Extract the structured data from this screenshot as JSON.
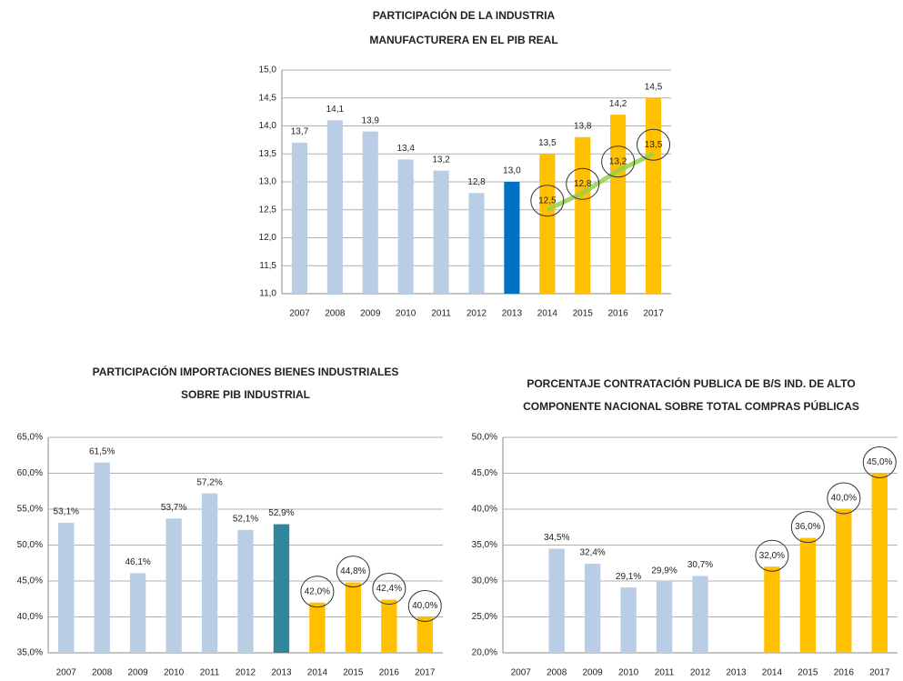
{
  "chart_data": [
    {
      "type": "bar",
      "title": [
        "PARTICIPACIÓN DE LA INDUSTRIA",
        "MANUFACTURERA EN EL PIB REAL"
      ],
      "categories": [
        "2007",
        "2008",
        "2009",
        "2010",
        "2011",
        "2012",
        "2013",
        "2014",
        "2015",
        "2016",
        "2017"
      ],
      "series": [
        {
          "type": "bar",
          "values": [
            13.7,
            14.1,
            13.9,
            13.4,
            13.2,
            12.8,
            13.0,
            13.5,
            13.8,
            14.2,
            14.5
          ],
          "value_labels": [
            "13,7",
            "14,1",
            "13,9",
            "13,4",
            "13,2",
            "12,8",
            "13,0",
            "13,5",
            "13,8",
            "14,2",
            "14,5"
          ],
          "colors": [
            "#b9cde5",
            "#b9cde5",
            "#b9cde5",
            "#b9cde5",
            "#b9cde5",
            "#b9cde5",
            "#0070c0",
            "#ffc000",
            "#ffc000",
            "#ffc000",
            "#ffc000"
          ]
        },
        {
          "type": "line",
          "color": "#92d050",
          "values": [
            null,
            null,
            null,
            null,
            null,
            null,
            null,
            12.5,
            12.8,
            13.2,
            13.5
          ],
          "value_labels": [
            null,
            null,
            null,
            null,
            null,
            null,
            null,
            "12,5",
            "12,8",
            "13,2",
            "13,5"
          ]
        }
      ],
      "ylim": [
        11,
        15
      ],
      "yticks": [
        {
          "value": 11,
          "label": "11,0"
        },
        {
          "value": 11.5,
          "label": "11,5"
        },
        {
          "value": 12,
          "label": "12,0"
        },
        {
          "value": 12.5,
          "label": "12,5"
        },
        {
          "value": 13,
          "label": "13,0"
        },
        {
          "value": 13.5,
          "label": "13,5"
        },
        {
          "value": 14,
          "label": "14,0"
        },
        {
          "value": 14.5,
          "label": "14,5"
        },
        {
          "value": 15,
          "label": "15,0"
        }
      ],
      "grid": true
    },
    {
      "type": "bar",
      "title": [
        "PARTICIPACIÓN IMPORTACIONES BIENES INDUSTRIALES",
        "SOBRE PIB INDUSTRIAL"
      ],
      "categories": [
        "2007",
        "2008",
        "2009",
        "2010",
        "2011",
        "2012",
        "2013",
        "2014",
        "2015",
        "2016",
        "2017"
      ],
      "series": [
        {
          "type": "bar",
          "values": [
            53.1,
            61.5,
            46.1,
            53.7,
            57.2,
            52.1,
            52.9,
            42.0,
            44.8,
            42.4,
            40.0
          ],
          "value_labels": [
            "53,1%",
            "61,5%",
            "46,1%",
            "53,7%",
            "57,2%",
            "52,1%",
            "52,9%",
            "42,0%",
            "44,8%",
            "42,4%",
            "40,0%"
          ],
          "colors": [
            "#b9cde5",
            "#b9cde5",
            "#b9cde5",
            "#b9cde5",
            "#b9cde5",
            "#b9cde5",
            "#31859c",
            "#ffc000",
            "#ffc000",
            "#ffc000",
            "#ffc000"
          ]
        }
      ],
      "ylim": [
        35,
        65
      ],
      "yticks": [
        {
          "value": 35,
          "label": "35,0%"
        },
        {
          "value": 40,
          "label": "40,0%"
        },
        {
          "value": 45,
          "label": "45,0%"
        },
        {
          "value": 50,
          "label": "50,0%"
        },
        {
          "value": 55,
          "label": "55,0%"
        },
        {
          "value": 60,
          "label": "60,0%"
        },
        {
          "value": 65,
          "label": "65,0%"
        }
      ],
      "grid": true
    },
    {
      "type": "bar",
      "title": [
        "PORCENTAJE CONTRATACIÓN PUBLICA DE B/S IND. DE ALTO",
        "COMPONENTE NACIONAL SOBRE TOTAL COMPRAS PÚBLICAS"
      ],
      "categories": [
        "2007",
        "2008",
        "2009",
        "2010",
        "2011",
        "2012",
        "2013",
        "2014",
        "2015",
        "2016",
        "2017"
      ],
      "series": [
        {
          "type": "bar",
          "values": [
            null,
            34.5,
            32.4,
            29.1,
            29.9,
            30.7,
            null,
            32.0,
            36.0,
            40.0,
            45.0
          ],
          "value_labels": [
            null,
            "34,5%",
            "32,4%",
            "29,1%",
            "29,9%",
            "30,7%",
            null,
            "32,0%",
            "36,0%",
            "40,0%",
            "45,0%"
          ],
          "colors": [
            "#b9cde5",
            "#b9cde5",
            "#b9cde5",
            "#b9cde5",
            "#b9cde5",
            "#b9cde5",
            "#b9cde5",
            "#ffc000",
            "#ffc000",
            "#ffc000",
            "#ffc000"
          ]
        }
      ],
      "ylim": [
        20,
        50
      ],
      "yticks": [
        {
          "value": 20,
          "label": "20,0%"
        },
        {
          "value": 25,
          "label": "25,0%"
        },
        {
          "value": 30,
          "label": "30,0%"
        },
        {
          "value": 35,
          "label": "35,0%"
        },
        {
          "value": 40,
          "label": "40,0%"
        },
        {
          "value": 45,
          "label": "45,0%"
        },
        {
          "value": 50,
          "label": "50,0%"
        }
      ],
      "grid": true
    }
  ]
}
